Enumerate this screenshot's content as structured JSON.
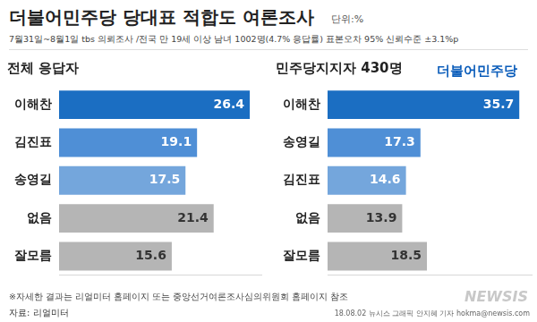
{
  "header": {
    "title": "더불어민주당 당대표 적합도 여론조사",
    "unit": "단위:%",
    "subtitle": "7월31일~8월1일 tbs 의뢰조사 /전국 만 19세 이상 남녀 1002명(4.7% 응답률) 표본오차 95% 신뢰수준 ±3.1%p",
    "logo": "더불어민주당"
  },
  "chart_data": [
    {
      "type": "bar",
      "title": "전체 응답자",
      "orientation": "horizontal",
      "categories": [
        "이해찬",
        "김진표",
        "송영길",
        "없음",
        "잘모름"
      ],
      "values": [
        26.4,
        19.1,
        17.5,
        21.4,
        15.6
      ],
      "colors": [
        "#1b6ec2",
        "#4f8fd6",
        "#74a6dc",
        "#b5b5b5",
        "#b5b5b5"
      ],
      "xlim": [
        0,
        28
      ],
      "grid": false,
      "data_labels": true,
      "tick_labels": "y"
    },
    {
      "type": "bar",
      "title": "민주당지지자 430명",
      "orientation": "horizontal",
      "categories": [
        "이해찬",
        "송영길",
        "김진표",
        "없음",
        "잘모름"
      ],
      "values": [
        35.7,
        17.3,
        14.6,
        13.9,
        18.5
      ],
      "colors": [
        "#1b6ec2",
        "#4f8fd6",
        "#74a6dc",
        "#b5b5b5",
        "#b5b5b5"
      ],
      "xlim": [
        0,
        38
      ],
      "grid": false,
      "data_labels": true,
      "tick_labels": "y"
    }
  ],
  "footer": {
    "note": "※자세한 결과는 리얼미터 홈페이지 또는 중앙선거여론조사심의위원회 홈페이지 참조",
    "source": "자료: 리얼미터",
    "credit": "18.08.02 뉴시스 그래픽 안지혜 기자 hokma@newsis.com",
    "watermark": "NEWSIS"
  }
}
